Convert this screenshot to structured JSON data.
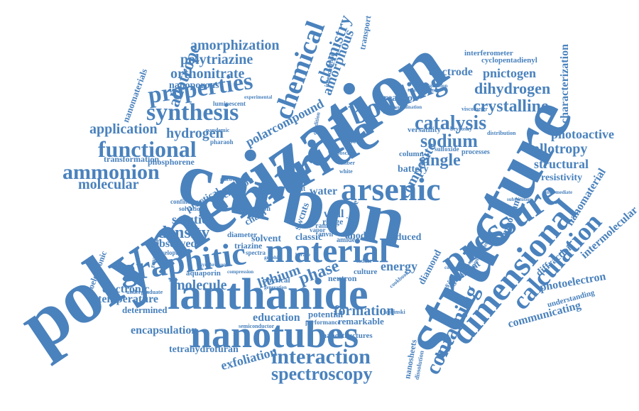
{
  "words": {
    "polymerization": "polymerization",
    "carbon": "carbon",
    "structure": "structure",
    "nitride": "nitride",
    "lanthanide": "lanthanide",
    "nanotubes": "nanotubes",
    "material": "material",
    "graphitic": "graphitic",
    "pressure": "pressure",
    "dimensional": "dimensional",
    "arsenic": "arsenic",
    "bonding": "bonding",
    "chemical": "chemical",
    "synthesis": "synthesis",
    "properties": "properties",
    "functional": "functional",
    "ammonion": "ammonion",
    "interaction": "interaction",
    "spectroscopy": "spectroscopy",
    "calculation": "calculation",
    "containing": "containing",
    "catalysis": "catalysis",
    "crystalline": "crystalline",
    "sodium": "sodium",
    "single": "single",
    "allotrope": "allotrope",
    "chemistry": "chemistry",
    "amorphous": "amorphous",
    "amorphization": "amorphization",
    "polytriazine": "polytriazine",
    "orthonitrate": "orthonitrate",
    "nanoporous": "nanoporous",
    "hydrogen": "hydrogen",
    "application": "application",
    "molecular": "molecular",
    "density": "density",
    "solution": "solution",
    "molecule": "molecule",
    "electronic": "electronic",
    "temperature": "temperature",
    "determined": "determined",
    "encapsulation": "encapsulation",
    "tetrahydrofuran": "tetrahydrofuran",
    "exfoliation": "exfoliation",
    "formation": "formation",
    "remarkable": "remarkable",
    "potential": "potential",
    "education": "education",
    "energy": "energy",
    "lithium": "lithium",
    "phase": "phase",
    "water": "water",
    "composite": "composite",
    "polarcompound": "polarcompound",
    "dihydrogen": "dihydrogen",
    "pnictogen": "pnictogen",
    "electrode": "electrode",
    "allotropy": "allotropy",
    "structural": "structural",
    "photoactive": "photoactive",
    "resistivity": "resistivity",
    "nanomaterial": "nanomaterial",
    "intermolecular": "intermolecular",
    "photoelectron": "photoelectron",
    "diffraction": "diffraction",
    "communicating": "communicating",
    "understanding": "understanding",
    "characterization": "characterization",
    "cyclopentadienyl": "cyclopentadienyl",
    "interferometer": "interferometer",
    "nanomaterials": "nanomaterials",
    "optoelectronic": "optoelectronic",
    "transport": "transport",
    "reaction": "reaction",
    "observed": "observed",
    "diamond": "diamond",
    "battery": "battery",
    "significant": "significant",
    "nanostructures": "nanostructures",
    "nanosheets": "nanosheets",
    "important": "important",
    "transformation": "transformation",
    "phosphorene": "phosphorene",
    "practical": "practical",
    "electron": "electron",
    "chain": "chain",
    "solvent": "solvent",
    "classic": "classic",
    "triazine": "triazine",
    "diameter": "diameter",
    "anode": "anode",
    "induced": "induced",
    "neutron": "neutron",
    "culture": "culture",
    "physical": "physical",
    "aquaporin": "aquaporin",
    "wall": "wall",
    "range": "range",
    "swcnts": "swcnts",
    "imide": "imide",
    "versatility": "versatility",
    "column": "column",
    "processes": "processes",
    "luminescent": "luminescent",
    "reversible": "reversible",
    "development": "development",
    "undergraduate": "undergraduate",
    "semiconductor": "semiconductor",
    "performance": "performance",
    "dissolution": "dissolution",
    "intercalation": "intercalation",
    "fullerene": "fullerene",
    "insight": "insight",
    "confinement": "confinement",
    "solvation": "solvation",
    "spectra": "spectra",
    "amide": "amide",
    "ladder": "ladder",
    "cookbook": "cookbook",
    "controlling": "controlling",
    "graphite": "graphite",
    "compression": "compression",
    "synchrotron": "synchrotron",
    "vapor": "vapor",
    "raman": "raman",
    "anvil": "anvil",
    "crystal": "crystal",
    "sulfoxide": "sulfoxide",
    "configuration": "configuration",
    "coordination": "coordination",
    "viscometer": "viscometer",
    "distribution": "distribution",
    "intermediate": "intermediate",
    "substitution": "substitution",
    "experimental": "experimental",
    "pharaoh": "pharaoh",
    "serpent": "serpent",
    "pandemic": "pandemic",
    "behavior": "behavior",
    "reactivity": "reactivity",
    "condition": "condition",
    "group": "group",
    "bosch": "bosch",
    "haber": "haber",
    "white": "white",
    "person": "person",
    "result": "result",
    "state": "state",
    "form": "form",
    "weak": "weak",
    "bond": "bond",
    "cell": "cell",
    "boron": "boron",
    "borane": "borane",
    "hexagonal": "hexagonal",
    "generation": "generation",
    "instruction": "instruction",
    "hydrides": "hydrides",
    "mixture": "mixture",
    "capacity": "capacity",
    "transmission": "transmission",
    "composition": "composition",
    "identification": "identification",
    "pnictides": "pnictides",
    "nitrogen": "nitrogen",
    "ambient": "ambient",
    "heating": "heating",
    "thermal": "thermal",
    "carbides": "carbides",
    "oxygen": "oxygen",
    "metal": "metal",
    "phosphide": "phosphide",
    "polymers": "polymers",
    "catalyst": "catalyst",
    "storage": "storage",
    "modified": "modified",
    "industrial": "industrial",
    "dioxide": "dioxide",
    "gas": "gas",
    "film": "film",
    "tetrahedral": "tetrahedral",
    "layered": "layered",
    "beyrosky": "beyrosky",
    "zaikinski": "zaikinski",
    "cooled": "cooled",
    "paramagnetic": "paramagnetic",
    "spontaneous": "spontaneous",
    "amphoteric": "amphoteric",
    "rotation": "rotation",
    "chlorine": "chlorine",
    "temperatures": "temperatures",
    "reconnection": "reconnection",
    "metallic": "metallic",
    "stable": "stable",
    "compounds": "compounds",
    "planar": "planar",
    "pnictogenic": "pnictogenic"
  }
}
